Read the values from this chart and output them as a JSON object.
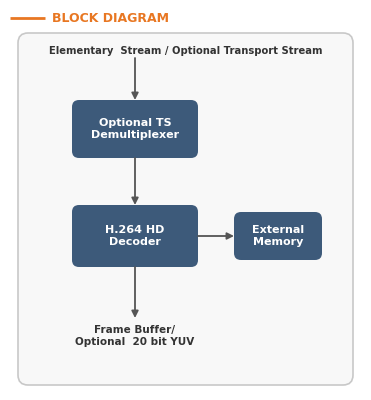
{
  "title": "BLOCK DIAGRAM",
  "title_color": "#E87722",
  "title_line_color": "#E87722",
  "bg_color": "#ffffff",
  "outer_box_edge_color": "#c8c8c8",
  "outer_box_face_color": "#f8f8f8",
  "outer_box_label": "Elementary  Stream / Optional Transport Stream",
  "outer_box_label_color": "#333333",
  "box_fill_color": "#3d5a7a",
  "box_text_color": "#ffffff",
  "box1_label": "Optional TS\nDemultiplexer",
  "box2_label": "H.264 HD\nDecoder",
  "box3_label": "External\nMemory",
  "bottom_label": "Frame Buffer/\nOptional  20 bit YUV",
  "bottom_label_color": "#333333",
  "arrow_color": "#555555"
}
